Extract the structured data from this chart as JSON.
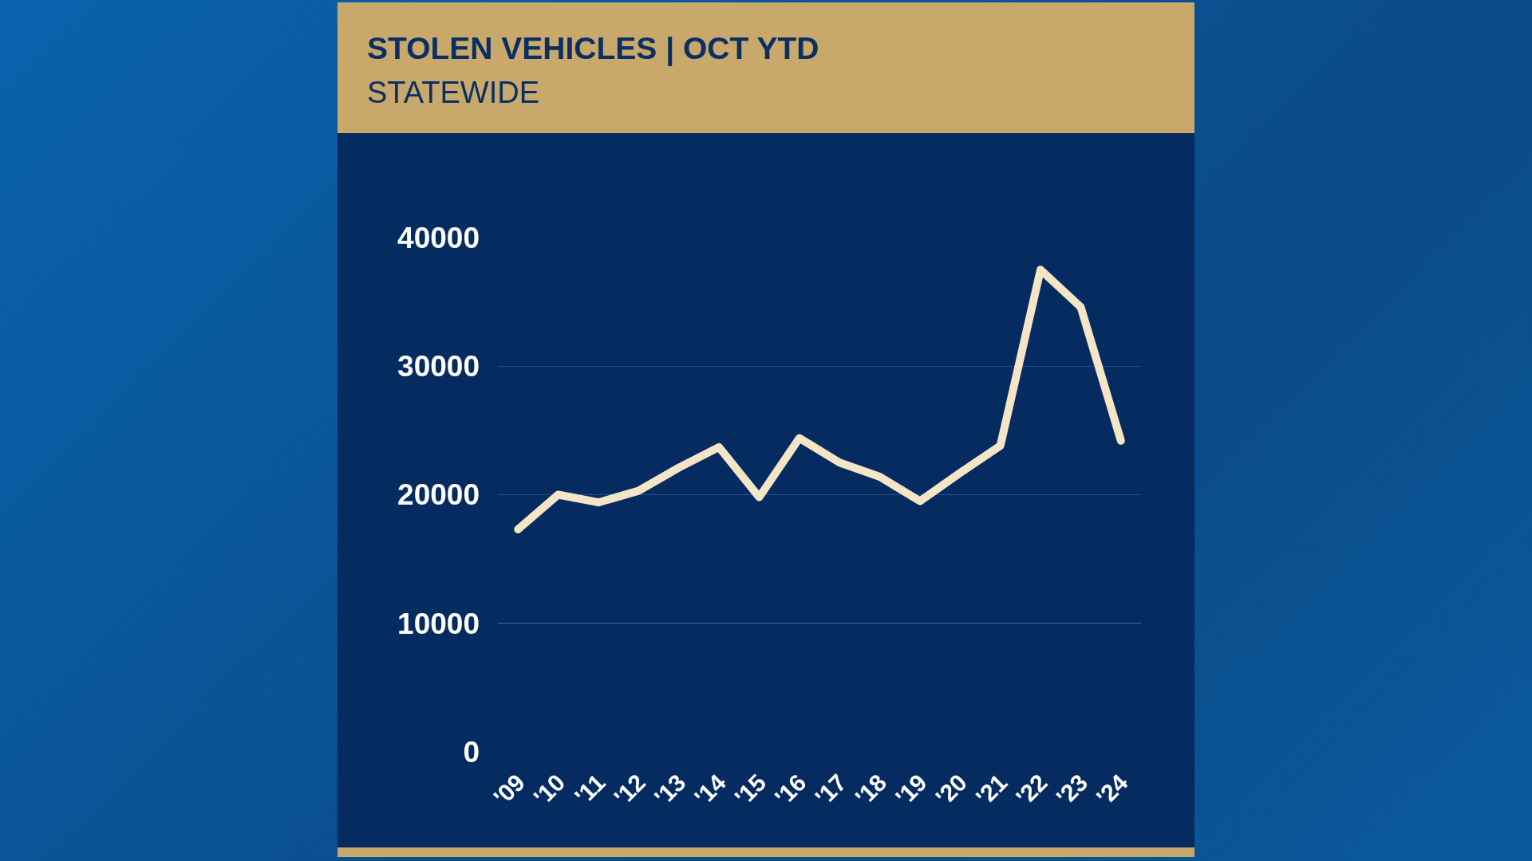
{
  "chart_data": {
    "type": "line",
    "title": "STOLEN VEHICLES | OCT YTD",
    "subtitle": "STATEWIDE",
    "categories": [
      "'09",
      "'10",
      "'11",
      "'12",
      "'13",
      "'14",
      "'15",
      "'16",
      "'17",
      "'18",
      "'19",
      "'20",
      "'21",
      "'22",
      "'23",
      "'24"
    ],
    "series": [
      {
        "color": "#f3e5c6",
        "values": [
          17300,
          20000,
          19400,
          20300,
          22100,
          23700,
          19800,
          24400,
          22500,
          21400,
          19500,
          21700,
          23800,
          37500,
          34600,
          24200
        ]
      }
    ],
    "ylim": [
      0,
      40000
    ],
    "yticks": [
      0,
      10000,
      20000,
      30000,
      40000
    ],
    "grid": "y",
    "line_style": "solid"
  }
}
